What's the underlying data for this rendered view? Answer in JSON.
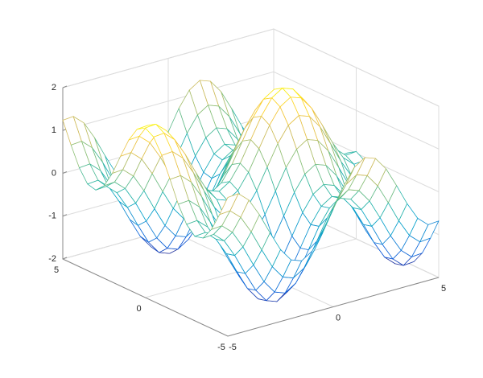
{
  "chart_data": {
    "type": "mesh",
    "colormap": "parula",
    "grid": true,
    "x": [
      -5,
      -4.5,
      -4,
      -3.5,
      -3,
      -2.5,
      -2,
      -1.5,
      -1,
      -0.5,
      0,
      0.5,
      1,
      1.5,
      2,
      2.5,
      3,
      3.5,
      4,
      4.5,
      5
    ],
    "y": [
      -5,
      -4.5,
      -4,
      -3.5,
      -3,
      -2.5,
      -2,
      -1.5,
      -1,
      -0.5,
      0,
      0.5,
      1,
      1.5,
      2,
      2.5,
      3,
      3.5,
      4,
      4.5,
      5
    ],
    "z": [
      [
        1.24,
        1.26,
        1.04,
        0.63,
        0.14,
        -0.32,
        -0.63,
        -0.72,
        -0.56,
        -0.2,
        0.28,
        0.76,
        1.12,
        1.28,
        1.19,
        0.88,
        0.42,
        -0.07,
        -0.48,
        -0.7,
        -0.68
      ],
      [
        0.75,
        0.77,
        0.55,
        0.14,
        -0.35,
        -0.81,
        -1.12,
        -1.21,
        -1.05,
        -0.69,
        -0.21,
        0.27,
        0.63,
        0.79,
        0.7,
        0.39,
        -0.07,
        -0.56,
        -0.97,
        -1.19,
        -1.17
      ],
      [
        0.31,
        0.33,
        0.11,
        -0.3,
        -0.79,
        -1.25,
        -1.56,
        -1.65,
        -1.49,
        -1.13,
        -0.65,
        -0.17,
        0.19,
        0.35,
        0.26,
        -0.05,
        -0.51,
        -1.0,
        -1.41,
        -1.63,
        -1.61
      ],
      [
        0.02,
        0.04,
        -0.18,
        -0.59,
        -1.08,
        -1.54,
        -1.85,
        -1.94,
        -1.78,
        -1.42,
        -0.94,
        -0.46,
        -0.1,
        0.06,
        -0.03,
        -0.34,
        -0.8,
        -1.29,
        -1.7,
        -1.92,
        -1.9
      ],
      [
        -0.03,
        -0.01,
        -0.23,
        -0.64,
        -1.13,
        -1.59,
        -1.9,
        -1.99,
        -1.83,
        -1.47,
        -0.99,
        -0.51,
        -0.15,
        0.01,
        -0.08,
        -0.39,
        -0.85,
        -1.34,
        -1.75,
        -1.97,
        -1.95
      ],
      [
        0.16,
        0.18,
        -0.04,
        -0.45,
        -0.94,
        -1.4,
        -1.71,
        -1.8,
        -1.64,
        -1.28,
        -0.8,
        -0.32,
        0.04,
        0.2,
        0.11,
        -0.2,
        -0.66,
        -1.15,
        -1.56,
        -1.78,
        -1.76
      ],
      [
        0.54,
        0.56,
        0.34,
        -0.07,
        -0.56,
        -1.02,
        -1.33,
        -1.42,
        -1.26,
        -0.9,
        -0.42,
        0.06,
        0.42,
        0.58,
        0.49,
        0.18,
        -0.28,
        -0.77,
        -1.18,
        -1.4,
        -1.38
      ],
      [
        1.03,
        1.05,
        0.83,
        0.42,
        -0.07,
        -0.53,
        -0.84,
        -0.93,
        -0.77,
        -0.41,
        0.07,
        0.55,
        0.91,
        1.07,
        0.98,
        0.67,
        0.21,
        -0.28,
        -0.69,
        -0.91,
        -0.89
      ],
      [
        1.5,
        1.52,
        1.3,
        0.89,
        0.4,
        -0.06,
        -0.37,
        -0.46,
        -0.3,
        0.06,
        0.54,
        1.02,
        1.38,
        1.54,
        1.45,
        1.14,
        0.68,
        0.19,
        -0.22,
        -0.44,
        -0.42
      ],
      [
        1.84,
        1.86,
        1.64,
        1.23,
        0.74,
        0.28,
        -0.03,
        -0.12,
        0.04,
        0.4,
        0.88,
        1.36,
        1.72,
        1.88,
        1.79,
        1.48,
        1.02,
        0.53,
        0.12,
        -0.1,
        -0.08
      ],
      [
        1.96,
        1.98,
        1.76,
        1.35,
        0.86,
        0.4,
        0.09,
        0.0,
        0.16,
        0.52,
        1.0,
        1.48,
        1.84,
        2.0,
        1.91,
        1.6,
        1.14,
        0.65,
        0.24,
        0.02,
        0.04
      ],
      [
        1.84,
        1.86,
        1.64,
        1.23,
        0.74,
        0.28,
        -0.03,
        -0.12,
        0.04,
        0.4,
        0.88,
        1.36,
        1.72,
        1.88,
        1.79,
        1.48,
        1.02,
        0.53,
        0.12,
        -0.1,
        -0.08
      ],
      [
        1.5,
        1.52,
        1.3,
        0.89,
        0.4,
        -0.06,
        -0.37,
        -0.46,
        -0.3,
        0.06,
        0.54,
        1.02,
        1.38,
        1.54,
        1.45,
        1.14,
        0.68,
        0.19,
        -0.22,
        -0.44,
        -0.42
      ],
      [
        1.03,
        1.05,
        0.83,
        0.42,
        -0.07,
        -0.53,
        -0.84,
        -0.93,
        -0.77,
        -0.41,
        0.07,
        0.55,
        0.91,
        1.07,
        0.98,
        0.67,
        0.21,
        -0.28,
        -0.69,
        -0.91,
        -0.89
      ],
      [
        0.54,
        0.56,
        0.34,
        -0.07,
        -0.56,
        -1.02,
        -1.33,
        -1.42,
        -1.26,
        -0.9,
        -0.42,
        0.06,
        0.42,
        0.58,
        0.49,
        0.18,
        -0.28,
        -0.77,
        -1.18,
        -1.4,
        -1.38
      ],
      [
        0.16,
        0.18,
        -0.04,
        -0.45,
        -0.94,
        -1.4,
        -1.71,
        -1.8,
        -1.64,
        -1.28,
        -0.8,
        -0.32,
        0.04,
        0.2,
        0.11,
        -0.2,
        -0.66,
        -1.15,
        -1.56,
        -1.78,
        -1.76
      ],
      [
        -0.03,
        -0.01,
        -0.23,
        -0.64,
        -1.13,
        -1.59,
        -1.9,
        -1.99,
        -1.83,
        -1.47,
        -0.99,
        -0.51,
        -0.15,
        0.01,
        -0.08,
        -0.39,
        -0.85,
        -1.34,
        -1.75,
        -1.97,
        -1.95
      ],
      [
        0.02,
        0.04,
        -0.18,
        -0.59,
        -1.08,
        -1.54,
        -1.85,
        -1.94,
        -1.78,
        -1.42,
        -0.94,
        -0.46,
        -0.1,
        0.06,
        -0.03,
        -0.34,
        -0.8,
        -1.29,
        -1.7,
        -1.92,
        -1.9
      ],
      [
        0.31,
        0.33,
        0.11,
        -0.3,
        -0.79,
        -1.25,
        -1.56,
        -1.65,
        -1.49,
        -1.13,
        -0.65,
        -0.17,
        0.19,
        0.35,
        0.26,
        -0.05,
        -0.51,
        -1.0,
        -1.41,
        -1.63,
        -1.61
      ],
      [
        0.75,
        0.77,
        0.55,
        0.14,
        -0.35,
        -0.81,
        -1.12,
        -1.21,
        -1.05,
        -0.69,
        -0.21,
        0.27,
        0.63,
        0.79,
        0.7,
        0.39,
        -0.07,
        -0.56,
        -0.97,
        -1.19,
        -1.17
      ],
      [
        1.24,
        1.26,
        1.04,
        0.63,
        0.14,
        -0.32,
        -0.63,
        -0.72,
        -0.56,
        -0.2,
        0.28,
        0.76,
        1.12,
        1.28,
        1.19,
        0.88,
        0.42,
        -0.07,
        -0.48,
        -0.7,
        -0.68
      ]
    ],
    "xlim": [
      -5,
      5
    ],
    "ylim": [
      -5,
      5
    ],
    "zlim": [
      -2,
      2
    ],
    "xticks": [
      -5,
      0,
      5
    ],
    "yticks": [
      -5,
      0,
      5
    ],
    "zticks": [
      -2,
      -1,
      0,
      1,
      2
    ]
  }
}
